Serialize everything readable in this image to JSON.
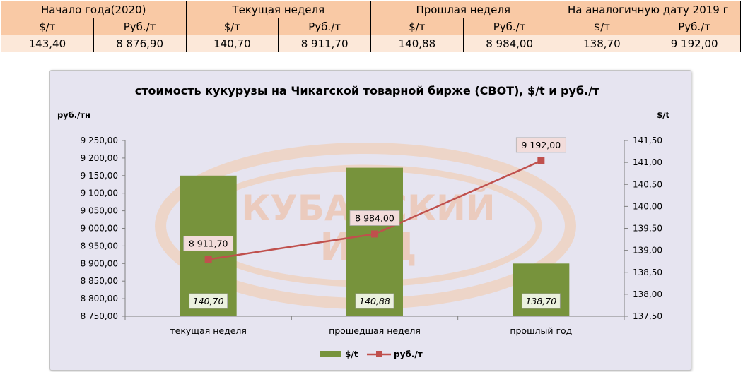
{
  "table": {
    "headers": [
      "Начало года(2020)",
      "Текущая неделя",
      "Прошлая неделя",
      "На аналогичную дату 2019 г"
    ],
    "units": [
      "$/т",
      "Руб./т",
      "$/т",
      "Руб./т",
      "$/т",
      "Руб./т",
      "$/т",
      "Руб./т"
    ],
    "values": [
      "143,40",
      "8 876,90",
      "140,70",
      "8 911,70",
      "140,88",
      "8 984,00",
      "138,70",
      "9 192,00"
    ]
  },
  "watermark": [
    "КУБАНСКИЙ",
    "ИАЦ"
  ],
  "chart_data": {
    "type": "bar+line",
    "title": "стоимость кукурузы на Чикагской товарной бирже (CBOT), $/t и руб./т",
    "categories": [
      "текущая неделя",
      "прошедшая неделя",
      "прошлый год"
    ],
    "series": [
      {
        "name": "$/t",
        "type": "bar",
        "axis": "right",
        "color": "#77933c",
        "values": [
          140.7,
          140.88,
          138.7
        ],
        "labels": [
          "140,70",
          "140,88",
          "138,70"
        ]
      },
      {
        "name": "руб./т",
        "type": "line",
        "axis": "left",
        "color": "#c0504d",
        "values": [
          8911.7,
          8984.0,
          9192.0
        ],
        "labels": [
          "8 911,70",
          "8 984,00",
          "9 192,00"
        ]
      }
    ],
    "y_left": {
      "label": "руб./тн",
      "min": 8750,
      "max": 9250,
      "ticks": [
        "8 750,00",
        "8 800,00",
        "8 850,00",
        "8 900,00",
        "8 950,00",
        "9 000,00",
        "9 050,00",
        "9 100,00",
        "9 150,00",
        "9 200,00",
        "9 250,00"
      ]
    },
    "y_right": {
      "label": "$/t",
      "min": 137.5,
      "max": 141.5,
      "ticks": [
        "137,50",
        "138,00",
        "138,50",
        "139,00",
        "139,50",
        "140,00",
        "140,50",
        "141,00",
        "141,50"
      ]
    },
    "legend_position": "bottom"
  }
}
